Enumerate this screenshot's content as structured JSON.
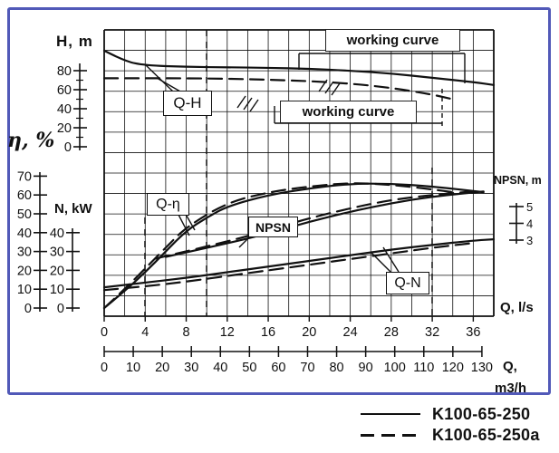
{
  "frame": {
    "border_color": "#5159b8",
    "background": "#ffffff"
  },
  "axis_labels": {
    "h": "H, m",
    "eta": "η, %",
    "n": "N, kW",
    "npsn": "NPSN, m",
    "q_ls": "Q, l/s",
    "q_line1": "Q,",
    "q_line2": "m3/h"
  },
  "curve_labels": {
    "qh": "Q-H",
    "qeta": "Q-η",
    "npsn": "NPSN",
    "qn": "Q-N"
  },
  "working_curve": {
    "top": "working curve",
    "mid": "working curve"
  },
  "legend": {
    "items": [
      {
        "label": "K100-65-250",
        "style": "solid"
      },
      {
        "label": "K100-65-250a",
        "style": "dashed"
      }
    ]
  },
  "chart_data": {
    "type": "line",
    "title": "",
    "grid": true,
    "x_axis": {
      "label": "Q, l/s",
      "ticks": [
        0,
        4,
        8,
        12,
        16,
        20,
        24,
        28,
        32,
        36
      ],
      "range": [
        0,
        38
      ]
    },
    "x_axis_secondary": {
      "label": "Q, m3/h",
      "ticks": [
        0,
        10,
        20,
        30,
        40,
        50,
        60,
        70,
        80,
        90,
        100,
        110,
        120,
        130
      ],
      "range": [
        0,
        134
      ]
    },
    "y_axes": {
      "H": {
        "label": "H, m",
        "ticks": [
          80,
          60,
          40,
          20,
          0
        ],
        "minor_ticks": [
          70,
          50,
          30,
          10
        ]
      },
      "eta": {
        "label": "η, %",
        "ticks": [
          70,
          60,
          50,
          40,
          30,
          20,
          10,
          0
        ]
      },
      "N": {
        "label": "N, kW",
        "ticks": [
          40,
          30,
          20,
          10,
          0
        ]
      },
      "NPSN": {
        "label": "NPSN, m",
        "ticks": [
          5,
          4,
          3
        ]
      }
    },
    "series": [
      {
        "id": "qh-250",
        "label": "Q-H",
        "pump": "K100-65-250",
        "axis": "H",
        "style": "solid",
        "points": [
          [
            0,
            101
          ],
          [
            2,
            90
          ],
          [
            4,
            85.5
          ],
          [
            8,
            84
          ],
          [
            12,
            83.5
          ],
          [
            16,
            83
          ],
          [
            20,
            82
          ],
          [
            24,
            80
          ],
          [
            28,
            77
          ],
          [
            32,
            72.5
          ],
          [
            36,
            68
          ],
          [
            38,
            65
          ]
        ]
      },
      {
        "id": "qh-250a",
        "label": "Q-H",
        "pump": "K100-65-250a",
        "axis": "H",
        "style": "dashed",
        "points": [
          [
            0,
            72
          ],
          [
            4,
            72
          ],
          [
            8,
            72
          ],
          [
            12,
            71.5
          ],
          [
            16,
            70.5
          ],
          [
            20,
            69
          ],
          [
            24,
            66.5
          ],
          [
            28,
            62
          ],
          [
            32,
            55
          ],
          [
            34,
            50
          ]
        ]
      },
      {
        "id": "qeta-250",
        "label": "Q-η",
        "pump": "K100-65-250",
        "axis": "eta",
        "style": "solid",
        "points": [
          [
            0,
            0
          ],
          [
            2,
            9
          ],
          [
            4,
            19
          ],
          [
            6,
            30
          ],
          [
            8,
            41
          ],
          [
            10,
            48
          ],
          [
            12,
            54
          ],
          [
            16,
            60
          ],
          [
            20,
            63.5
          ],
          [
            24,
            66
          ],
          [
            28,
            66
          ],
          [
            32,
            64.5
          ],
          [
            37,
            61.5
          ]
        ]
      },
      {
        "id": "qeta-250a",
        "label": "Q-η",
        "pump": "K100-65-250a",
        "axis": "eta",
        "style": "dashed",
        "points": [
          [
            0,
            0
          ],
          [
            2,
            10
          ],
          [
            4,
            21
          ],
          [
            6,
            32
          ],
          [
            8,
            43
          ],
          [
            12,
            56
          ],
          [
            16,
            61.5
          ],
          [
            20,
            64.5
          ],
          [
            24,
            66.5
          ],
          [
            28,
            65.5
          ],
          [
            32,
            63
          ],
          [
            34,
            61.5
          ]
        ]
      },
      {
        "id": "npsn-250",
        "label": "NPSN",
        "pump": "K100-65-250",
        "axis": "NPSN",
        "style": "solid",
        "points": [
          [
            6,
            2
          ],
          [
            12,
            2.8
          ],
          [
            16,
            3.4
          ],
          [
            20,
            4.1
          ],
          [
            24,
            4.7
          ],
          [
            28,
            5.2
          ],
          [
            32,
            5.6
          ],
          [
            37,
            5.9
          ]
        ]
      },
      {
        "id": "npsn-250a",
        "label": "NPSN",
        "pump": "K100-65-250a",
        "axis": "NPSN",
        "style": "dashed",
        "points": [
          [
            5,
            1.9
          ],
          [
            12,
            2.9
          ],
          [
            16,
            3.6
          ],
          [
            20,
            4.3
          ],
          [
            24,
            4.9
          ],
          [
            28,
            5.4
          ],
          [
            32,
            5.7
          ],
          [
            36,
            5.9
          ]
        ]
      },
      {
        "id": "qn-250",
        "label": "Q-N",
        "pump": "K100-65-250",
        "axis": "N",
        "style": "solid",
        "points": [
          [
            0,
            11
          ],
          [
            4,
            13.5
          ],
          [
            8,
            16
          ],
          [
            12,
            19
          ],
          [
            16,
            22
          ],
          [
            20,
            25
          ],
          [
            24,
            28
          ],
          [
            28,
            31
          ],
          [
            32,
            33.5
          ],
          [
            36,
            35.8
          ],
          [
            38,
            36.5
          ]
        ]
      },
      {
        "id": "qn-250a",
        "label": "Q-N",
        "pump": "K100-65-250a",
        "axis": "N",
        "style": "dashed",
        "points": [
          [
            0,
            9.5
          ],
          [
            4,
            11.5
          ],
          [
            8,
            14
          ],
          [
            12,
            17
          ],
          [
            16,
            20
          ],
          [
            20,
            23
          ],
          [
            24,
            26
          ],
          [
            28,
            29
          ],
          [
            32,
            32
          ],
          [
            36,
            34.5
          ]
        ]
      }
    ]
  }
}
